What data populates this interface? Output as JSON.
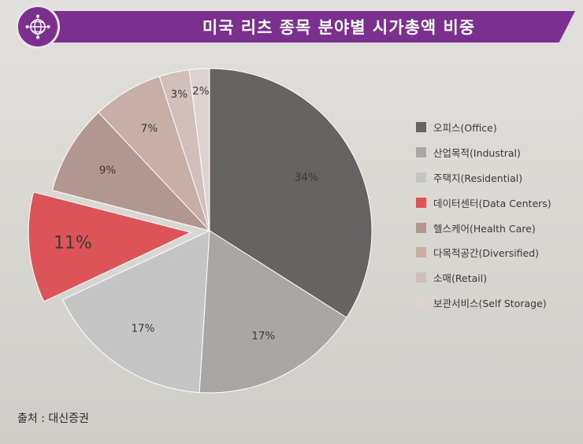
{
  "header": {
    "title": "미국 리츠 종목 분야별 시가총액 비중",
    "icon": "globe-network-icon"
  },
  "chart_data": {
    "type": "pie",
    "title": "미국 리츠 종목 분야별 시가총액 비중",
    "unit": "%",
    "exploded": "데이터센터(Data Centers)",
    "slices": [
      {
        "label": "오피스(Office)",
        "value": 34,
        "value_label": "34%",
        "color": "#666462"
      },
      {
        "label": "산업목적(Industral)",
        "value": 17,
        "value_label": "17%",
        "color": "#a9a7a6"
      },
      {
        "label": "주택지(Residential)",
        "value": 17,
        "value_label": "17%",
        "color": "#c6c5c6"
      },
      {
        "label": "데이터센터(Data Centers)",
        "value": 11,
        "value_label": "11%",
        "color": "#dc5457"
      },
      {
        "label": "헬스케어(Health Care)",
        "value": 9,
        "value_label": "9%",
        "color": "#b29690"
      },
      {
        "label": "다목적공간(Diversified)",
        "value": 7,
        "value_label": "7%",
        "color": "#c7aea6"
      },
      {
        "label": "소매(Retail)",
        "value": 3,
        "value_label": "3%",
        "color": "#d1bfbb"
      },
      {
        "label": "보관서비스(Self Storage)",
        "value": 2,
        "value_label": "2%",
        "color": "#ddd2cf"
      }
    ]
  },
  "source": "출처 : 대신증권"
}
